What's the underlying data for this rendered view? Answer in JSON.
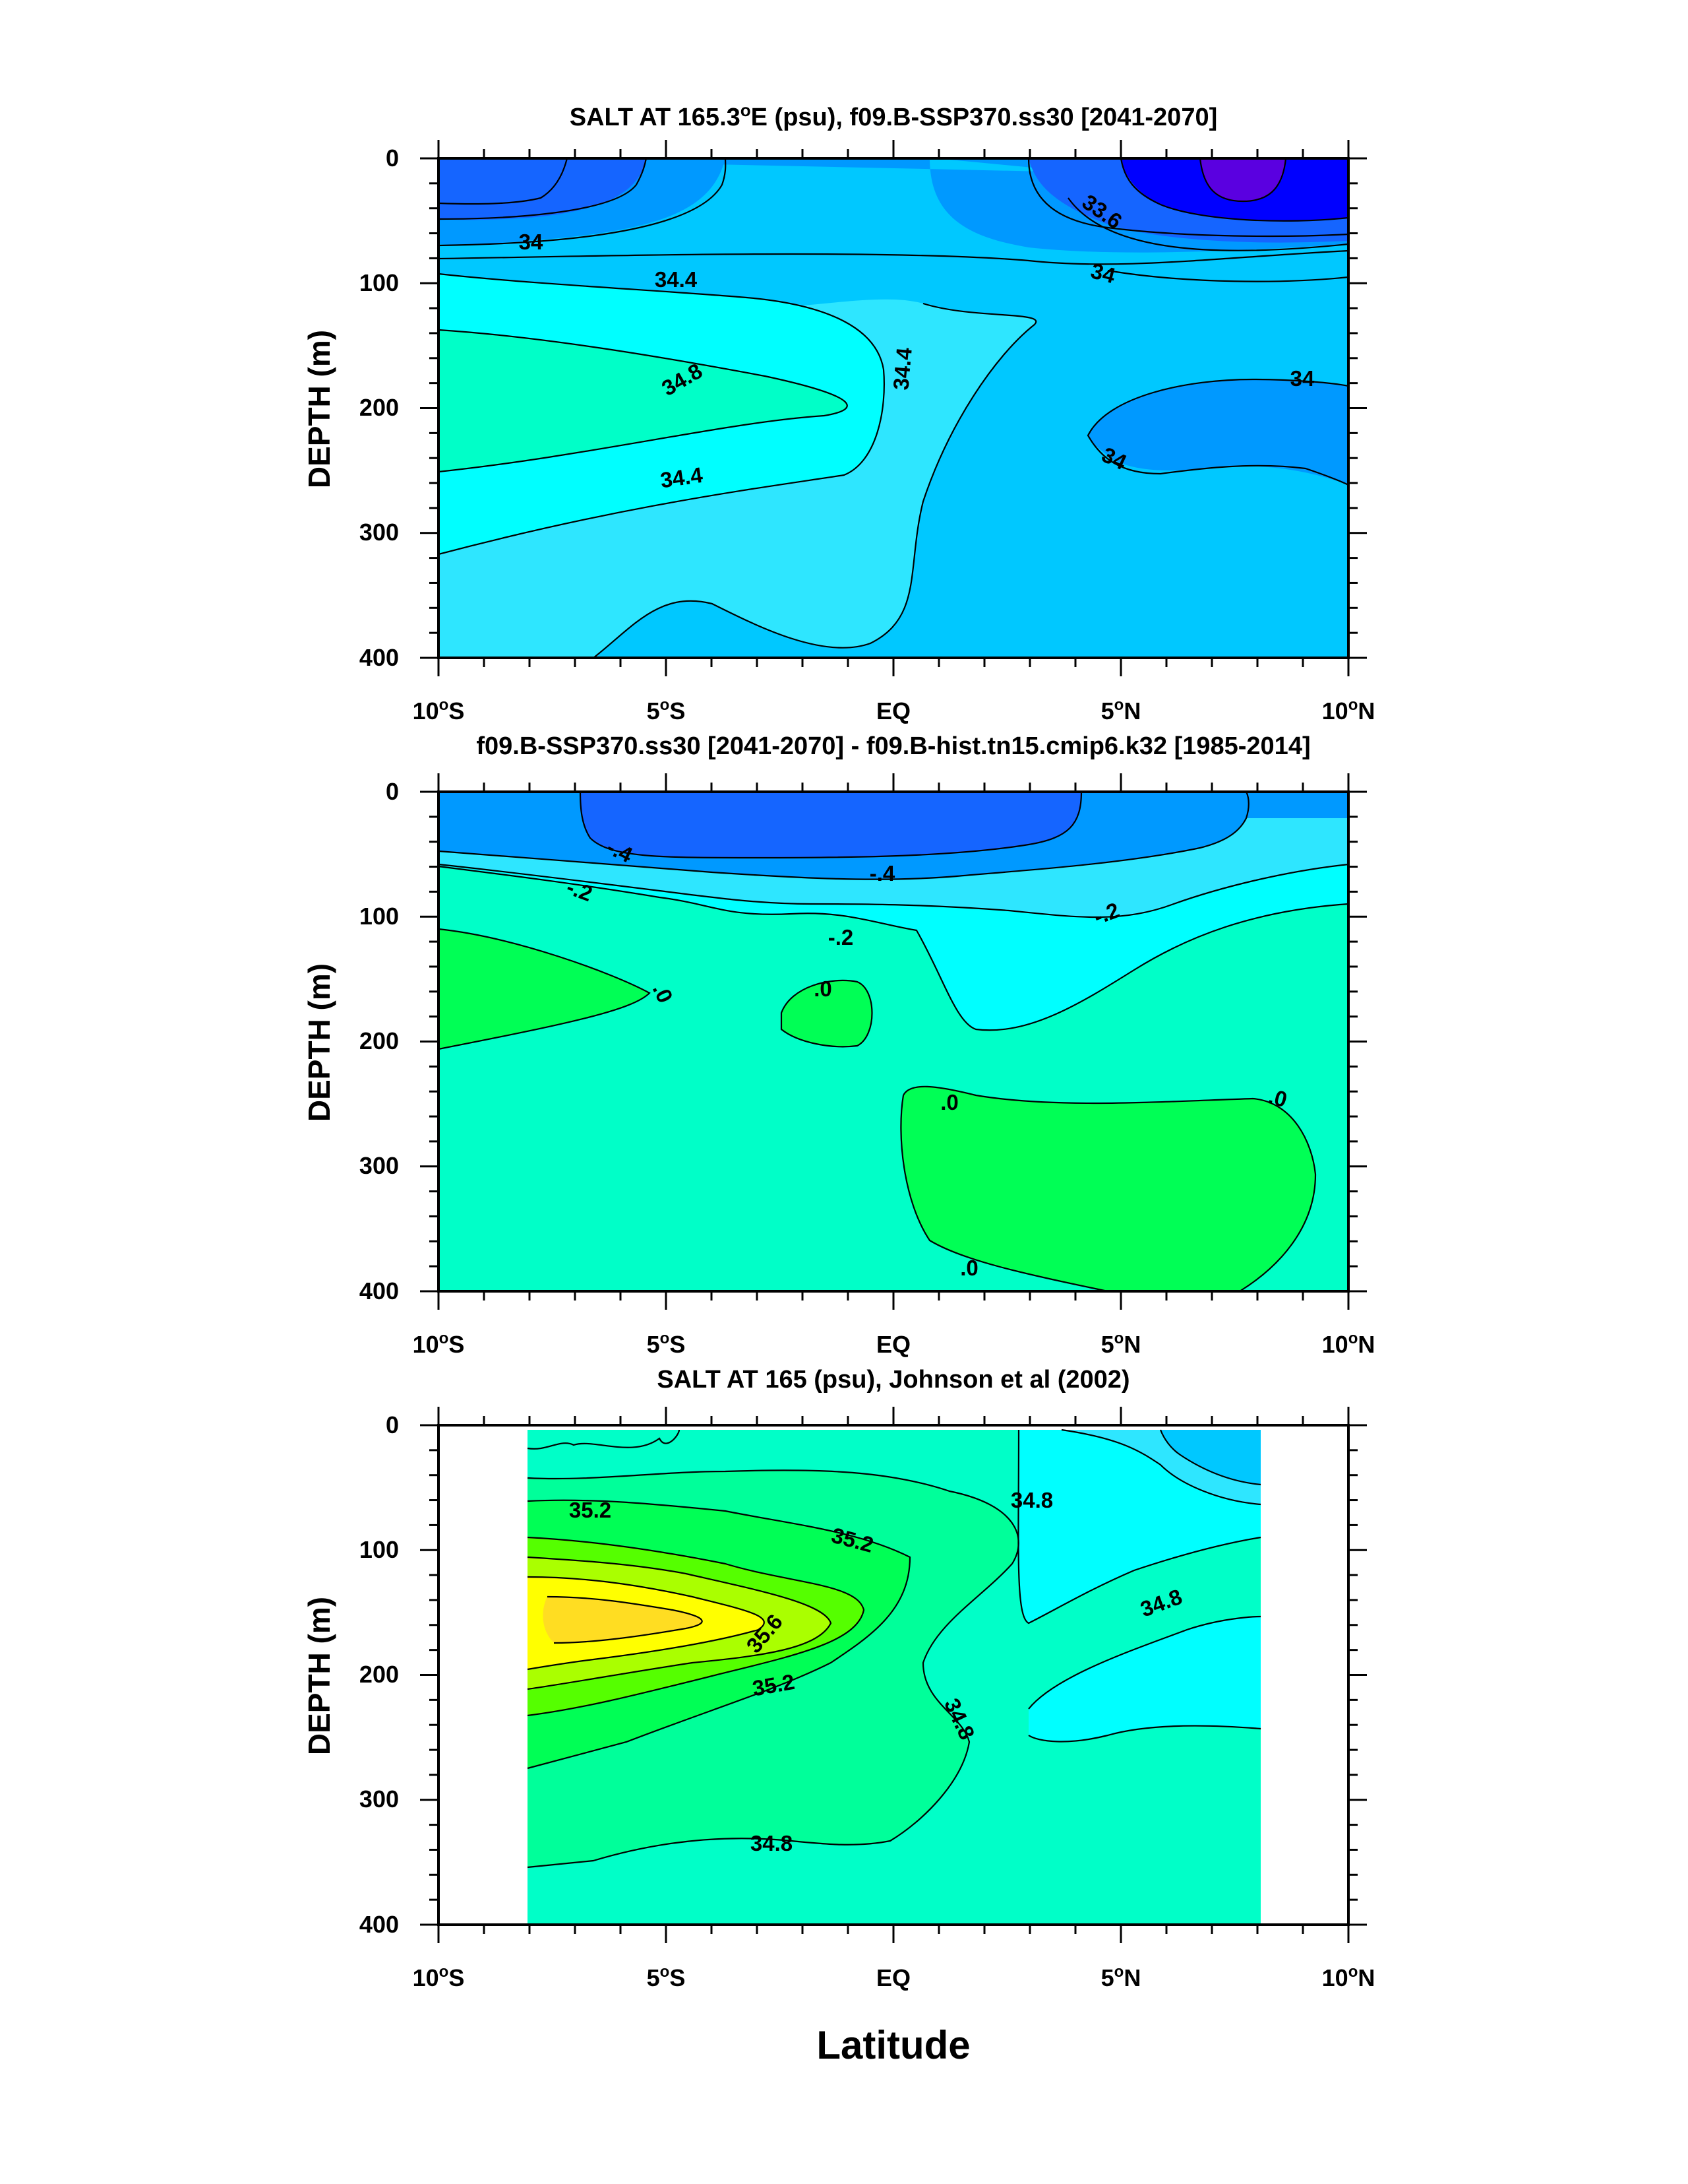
{
  "chart_data": [
    {
      "type": "contour",
      "title": "SALT AT 165.3°E (psu), f09.B-SSP370.ss30 [2041-2070]",
      "title_parts": {
        "a": "SALT AT 165.3",
        "deg": "o",
        "b": "E (psu), f09.B-SSP370.ss30 [2041-2070]"
      },
      "ylabel": "DEPTH (m)",
      "xlim": [
        -10,
        10
      ],
      "ylim": [
        400,
        0
      ],
      "y_ticks": [
        "0",
        "100",
        "200",
        "300",
        "400"
      ],
      "contour_labels": [
        "34",
        "34.4",
        "34.8",
        "34.4",
        "34.4",
        "33.6",
        "34",
        "34",
        "34"
      ]
    },
    {
      "type": "contour",
      "title": "f09.B-SSP370.ss30 [2041-2070] - f09.B-hist.tn15.cmip6.k32 [1985-2014]",
      "ylabel": "DEPTH (m)",
      "xlim": [
        -10,
        10
      ],
      "ylim": [
        400,
        0
      ],
      "y_ticks": [
        "0",
        "100",
        "200",
        "300",
        "400"
      ],
      "contour_labels": [
        "-.4",
        "-.4",
        "-.2",
        "-.2",
        "-.2",
        ".0",
        ".0",
        ".0",
        ".0",
        ".0"
      ]
    },
    {
      "type": "contour",
      "title": "SALT AT 165 (psu), Johnson et al (2002)",
      "ylabel": "DEPTH (m)",
      "xlim": [
        -10,
        10
      ],
      "ylim": [
        400,
        0
      ],
      "y_ticks": [
        "0",
        "100",
        "200",
        "300",
        "400"
      ],
      "contour_labels": [
        "35.2",
        "35.2",
        "35.6",
        "35.2",
        "34.8",
        "34.8",
        "34.8",
        "34.8"
      ]
    }
  ],
  "x_ticks": [
    {
      "num": "10",
      "deg": "o",
      "hem": "S"
    },
    {
      "num": "5",
      "deg": "o",
      "hem": "S"
    },
    {
      "num": "EQ",
      "deg": "",
      "hem": ""
    },
    {
      "num": "5",
      "deg": "o",
      "hem": "N"
    },
    {
      "num": "10",
      "deg": "o",
      "hem": "N"
    }
  ],
  "xlabel": "Latitude",
  "colors": {
    "s_deep_blue": "#0000ff",
    "s_violet": "#5a00e0",
    "s_dark_blue": "#1565ff",
    "s_blue": "#0099ff",
    "s_sky": "#00c8ff",
    "s_light_cyan": "#2ee6ff",
    "s_cyan": "#00ffff",
    "s_aqua": "#00ffc8",
    "s_teal_green": "#00ff9a",
    "s_green": "#00ff55",
    "s_lime": "#55ff00",
    "s_yellow_green": "#aaff00",
    "s_yellow": "#ffff00",
    "s_gold": "#ffdd22"
  }
}
